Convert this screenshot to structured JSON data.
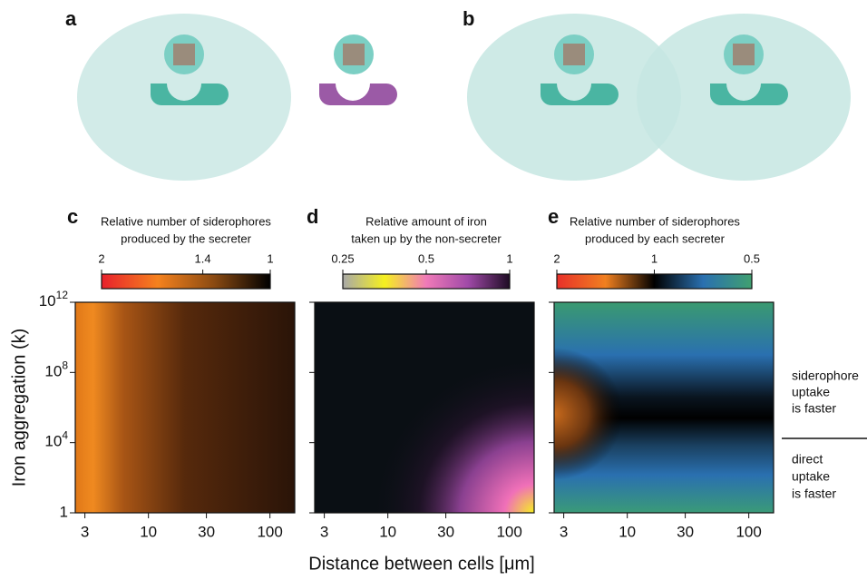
{
  "panels": [
    "a",
    "b",
    "c",
    "d",
    "e"
  ],
  "xlabel": "Distance between cells [μm]",
  "ylabel": "Iron aggregation (k)",
  "annotations": [
    [
      "siderophore",
      "uptake",
      "is faster"
    ],
    [
      "direct",
      "uptake",
      "is faster"
    ]
  ],
  "chart_data": [
    {
      "type": "heatmap",
      "title": [
        "Relative number of siderophores",
        "produced by the secreter"
      ],
      "colorbar": {
        "colors": [
          "#e8202c",
          "#f5821e",
          "#8a4a12",
          "#000000"
        ],
        "lim": [
          2,
          1
        ],
        "log": false,
        "ticks": [
          2,
          1.4,
          1
        ]
      },
      "xlim": [
        2.5,
        160
      ],
      "xlog": true,
      "xticks": [
        3,
        10,
        30,
        100
      ],
      "ylim": [
        1,
        1000000000000.0
      ],
      "ylog": true,
      "yticks": [
        1,
        {
          "value": 10000,
          "label": "10",
          "exponent": "4"
        },
        {
          "value": 100000000,
          "label": "10",
          "exponent": "8"
        },
        {
          "value": 1000000000000,
          "label": "10",
          "exponent": "12"
        }
      ]
    },
    {
      "type": "heatmap",
      "title": [
        "Relative amount of iron",
        "taken up by the non-secreter"
      ],
      "colorbar": {
        "colors": [
          "#a8a8a8",
          "#f5f020",
          "#f07ab8",
          "#a04aa8",
          "#1e0c24"
        ],
        "lim": [
          0.25,
          1
        ],
        "log": true,
        "ticks": [
          0.25,
          0.5,
          1
        ]
      },
      "xlim": [
        2.5,
        160
      ],
      "xlog": true,
      "xticks": [
        3,
        10,
        30,
        100
      ]
    },
    {
      "type": "heatmap",
      "title": [
        "Relative number of siderophores",
        "produced by each secreter"
      ],
      "colorbar": {
        "colors": [
          "#e8302a",
          "#f08020",
          "#000000",
          "#2a70b0",
          "#40a070"
        ],
        "lim": [
          2,
          0.5
        ],
        "log": true,
        "ticks": [
          2,
          1,
          0.5
        ]
      },
      "xlim": [
        2.5,
        160
      ],
      "xlog": true,
      "xticks": [
        3,
        10,
        30,
        100
      ]
    }
  ]
}
